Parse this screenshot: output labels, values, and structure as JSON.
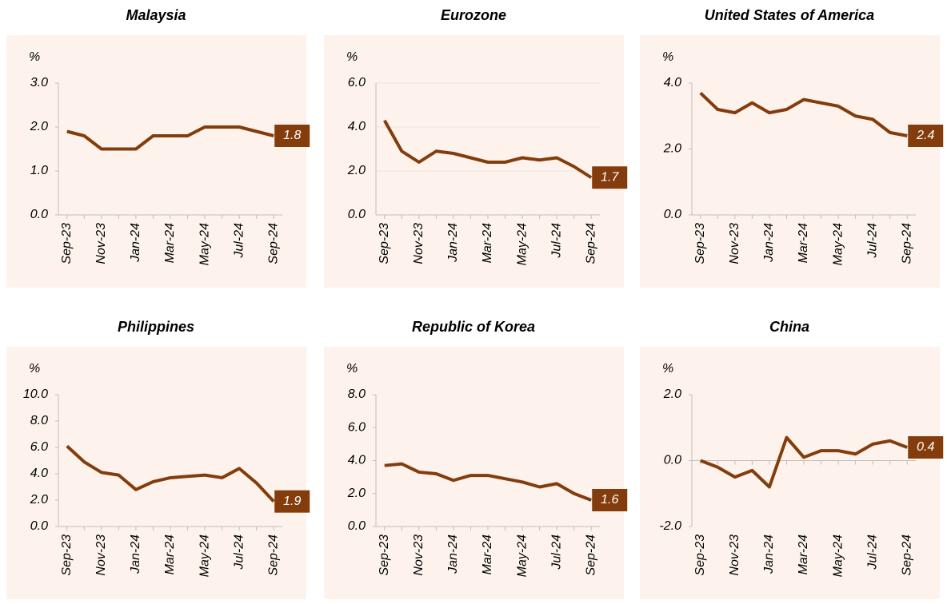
{
  "chart_data": [
    {
      "type": "line",
      "title": "Malaysia",
      "y_label": "%",
      "categories": [
        "Sep-23",
        null,
        "Nov-23",
        null,
        "Jan-24",
        null,
        "Mar-24",
        null,
        "May-24",
        null,
        "Jul-24",
        null,
        "Sep-24"
      ],
      "values": [
        1.9,
        1.8,
        1.5,
        1.5,
        1.5,
        1.8,
        1.8,
        1.8,
        2.0,
        2.0,
        2.0,
        1.9,
        1.8
      ],
      "color": "#843c0c",
      "grid": false,
      "ylim": [
        0,
        3
      ],
      "yticks": [
        {
          "value": 0,
          "label": "0.0"
        },
        {
          "value": 1,
          "label": "1.0"
        },
        {
          "value": 2,
          "label": "2.0"
        },
        {
          "value": 3,
          "label": "3.0"
        }
      ]
    },
    {
      "type": "line",
      "title": "Eurozone",
      "y_label": "%",
      "categories": [
        "Sep-23",
        null,
        "Nov-23",
        null,
        "Jan-24",
        null,
        "Mar-24",
        null,
        "May-24",
        null,
        "Jul-24",
        null,
        "Sep-24"
      ],
      "values": [
        4.3,
        2.9,
        2.4,
        2.9,
        2.8,
        2.6,
        2.4,
        2.4,
        2.6,
        2.5,
        2.6,
        2.2,
        1.7
      ],
      "color": "#843c0c",
      "grid": true,
      "ylim": [
        0,
        6
      ],
      "yticks": [
        {
          "value": 0,
          "label": "0.0"
        },
        {
          "value": 2,
          "label": "2.0"
        },
        {
          "value": 4,
          "label": "4.0"
        },
        {
          "value": 6,
          "label": "6.0"
        }
      ]
    },
    {
      "type": "line",
      "title": "United States of America",
      "y_label": "%",
      "categories": [
        "Sep-23",
        null,
        "Nov-23",
        null,
        "Jan-24",
        null,
        "Mar-24",
        null,
        "May-24",
        null,
        "Jul-24",
        null,
        "Sep-24"
      ],
      "values": [
        3.7,
        3.2,
        3.1,
        3.4,
        3.1,
        3.2,
        3.5,
        3.4,
        3.3,
        3.0,
        2.9,
        2.5,
        2.4
      ],
      "color": "#843c0c",
      "grid": false,
      "ylim": [
        0,
        4
      ],
      "yticks": [
        {
          "value": 0,
          "label": "0.0"
        },
        {
          "value": 2,
          "label": "2.0"
        },
        {
          "value": 4,
          "label": "4.0"
        }
      ]
    },
    {
      "type": "line",
      "title": "Philippines",
      "y_label": "%",
      "categories": [
        "Sep-23",
        null,
        "Nov-23",
        null,
        "Jan-24",
        null,
        "Mar-24",
        null,
        "May-24",
        null,
        "Jul-24",
        null,
        "Sep-24"
      ],
      "values": [
        6.1,
        4.9,
        4.1,
        3.9,
        2.8,
        3.4,
        3.7,
        3.8,
        3.9,
        3.7,
        4.4,
        3.3,
        1.9
      ],
      "color": "#843c0c",
      "grid": false,
      "ylim": [
        0,
        10
      ],
      "yticks": [
        {
          "value": 0,
          "label": "0.0"
        },
        {
          "value": 2,
          "label": "2.0"
        },
        {
          "value": 4,
          "label": "4.0"
        },
        {
          "value": 6,
          "label": "6.0"
        },
        {
          "value": 8,
          "label": "8.0"
        },
        {
          "value": 10,
          "label": "10.0"
        }
      ]
    },
    {
      "type": "line",
      "title": "Republic of Korea",
      "y_label": "%",
      "categories": [
        "Sep-23",
        null,
        "Nov-23",
        null,
        "Jan-24",
        null,
        "Mar-24",
        null,
        "May-24",
        null,
        "Jul-24",
        null,
        "Sep-24"
      ],
      "values": [
        3.7,
        3.8,
        3.3,
        3.2,
        2.8,
        3.1,
        3.1,
        2.9,
        2.7,
        2.4,
        2.6,
        2.0,
        1.6
      ],
      "color": "#843c0c",
      "grid": false,
      "ylim": [
        0,
        8
      ],
      "yticks": [
        {
          "value": 0,
          "label": "0.0"
        },
        {
          "value": 2,
          "label": "2.0"
        },
        {
          "value": 4,
          "label": "4.0"
        },
        {
          "value": 6,
          "label": "6.0"
        },
        {
          "value": 8,
          "label": "8.0"
        }
      ]
    },
    {
      "type": "line",
      "title": "China",
      "y_label": "%",
      "categories": [
        "Sep-23",
        null,
        "Nov-23",
        null,
        "Jan-24",
        null,
        "Mar-24",
        null,
        "May-24",
        null,
        "Jul-24",
        null,
        "Sep-24"
      ],
      "values": [
        0.0,
        -0.2,
        -0.5,
        -0.3,
        -0.8,
        0.7,
        0.1,
        0.3,
        0.3,
        0.2,
        0.5,
        0.6,
        0.4
      ],
      "color": "#843c0c",
      "grid": false,
      "ylim": [
        -2,
        2
      ],
      "yticks": [
        {
          "value": -2,
          "label": "-2.0"
        },
        {
          "value": 0,
          "label": "0.0"
        },
        {
          "value": 2,
          "label": "2.0"
        }
      ]
    }
  ]
}
